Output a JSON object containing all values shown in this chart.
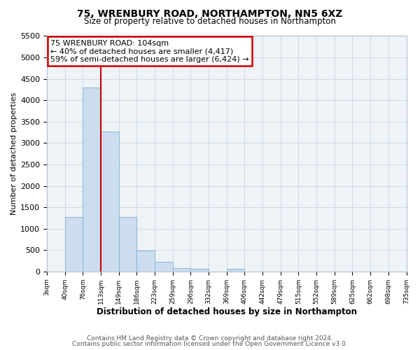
{
  "title": "75, WRENBURY ROAD, NORTHAMPTON, NN5 6XZ",
  "subtitle": "Size of property relative to detached houses in Northampton",
  "xlabel": "Distribution of detached houses by size in Northampton",
  "ylabel": "Number of detached properties",
  "bin_labels": [
    "3sqm",
    "40sqm",
    "76sqm",
    "113sqm",
    "149sqm",
    "186sqm",
    "223sqm",
    "259sqm",
    "296sqm",
    "332sqm",
    "369sqm",
    "406sqm",
    "442sqm",
    "479sqm",
    "515sqm",
    "552sqm",
    "589sqm",
    "625sqm",
    "662sqm",
    "698sqm",
    "735sqm"
  ],
  "bar_values": [
    0,
    1270,
    4300,
    3270,
    1280,
    480,
    230,
    85,
    60,
    0,
    55,
    0,
    0,
    0,
    0,
    0,
    0,
    0,
    0,
    0
  ],
  "bar_color": "#ccddf0",
  "bar_edgecolor": "#8ab4d4",
  "vline_color": "#cc0000",
  "annotation_title": "75 WRENBURY ROAD: 104sqm",
  "annotation_line1": "← 40% of detached houses are smaller (4,417)",
  "annotation_line2": "59% of semi-detached houses are larger (6,424) →",
  "annotation_box_edgecolor": "#cc0000",
  "ylim": [
    0,
    5500
  ],
  "yticks": [
    0,
    500,
    1000,
    1500,
    2000,
    2500,
    3000,
    3500,
    4000,
    4500,
    5000,
    5500
  ],
  "footnote1": "Contains HM Land Registry data © Crown copyright and database right 2024.",
  "footnote2": "Contains public sector information licensed under the Open Government Licence v3.0.",
  "bg_color": "#ffffff",
  "plot_bg_color": "#eef3f8",
  "grid_color": "#c8d4e0"
}
